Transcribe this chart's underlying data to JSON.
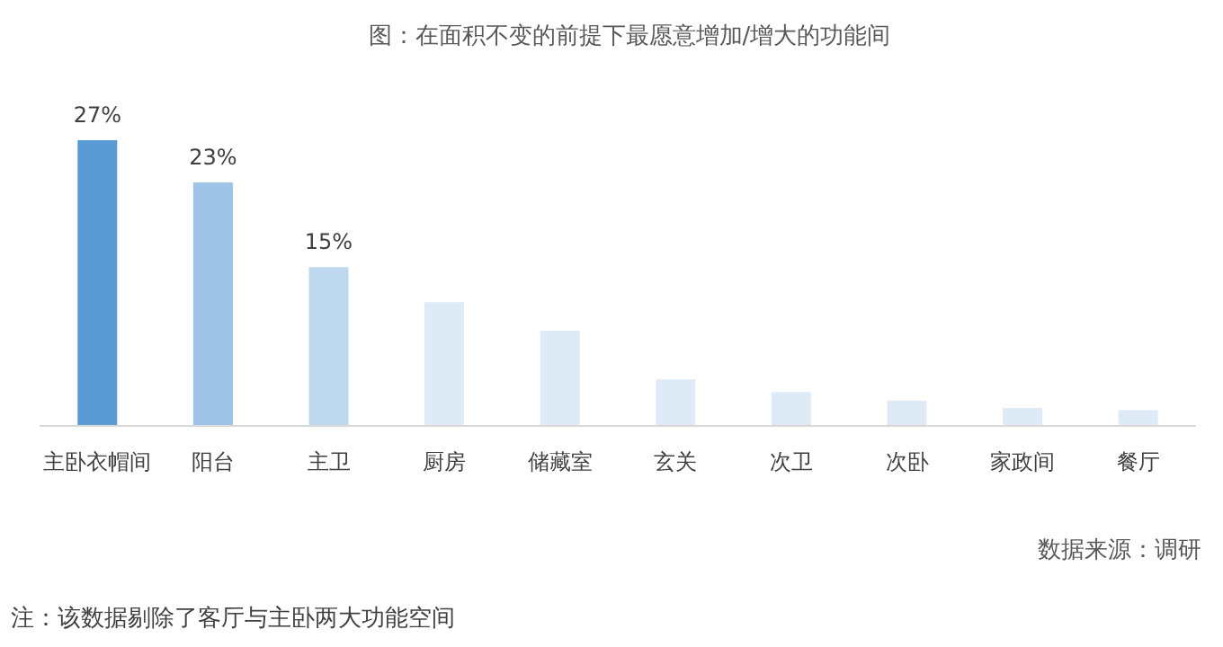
{
  "chart_data": {
    "type": "bar",
    "title": "图：在面积不变的前提下最愿意增加/增大的功能间",
    "categories": [
      "主卧衣帽间",
      "阳台",
      "主卫",
      "厨房",
      "储藏室",
      "玄关",
      "次卫",
      "次卧",
      "家政间",
      "餐厅"
    ],
    "values": [
      27,
      23,
      15,
      11.7,
      9,
      4.4,
      3.2,
      2.4,
      1.7,
      1.5
    ],
    "colors": [
      "#5b9bd5",
      "#9dc3e6",
      "#bdd7ee",
      "#deebf7",
      "#deebf7",
      "#deebf7",
      "#deebf7",
      "#deebf7",
      "#deebf7",
      "#deebf7"
    ],
    "value_labels": [
      "27%",
      "23%",
      "15%",
      null,
      null,
      null,
      null,
      null,
      null,
      null
    ],
    "annotations": [
      "数据来源：调研",
      "注：该数据剔除了客厅与主卧两大功能空间"
    ]
  }
}
